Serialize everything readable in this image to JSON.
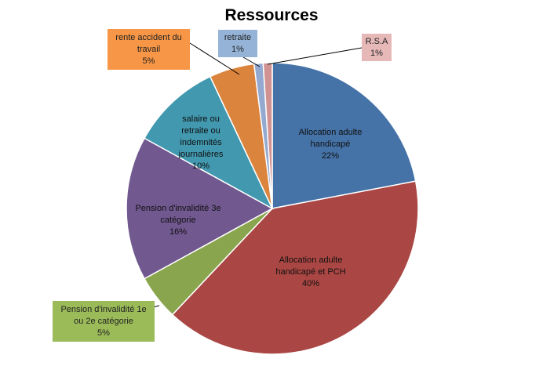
{
  "chart_data": {
    "type": "pie",
    "title": "Ressources",
    "slices": [
      {
        "label": [
          "Allocation adulte",
          "handicapé"
        ],
        "percent_label": "22%",
        "value": 22,
        "color": "#4572a7"
      },
      {
        "label": [
          "Allocation adulte",
          "handicapé et PCH"
        ],
        "percent_label": "40%",
        "value": 40,
        "color": "#aa4643"
      },
      {
        "label": [
          "Pension d'invalidité 1e",
          "ou 2e catégorie"
        ],
        "percent_label": "5%",
        "value": 5,
        "color": "#89a54e"
      },
      {
        "label": [
          "Pension d'invalidité 3e",
          "catégorie"
        ],
        "percent_label": "16%",
        "value": 16,
        "color": "#71588f"
      },
      {
        "label": [
          "salaire ou",
          "retraite ou",
          "indemnités",
          "journalières"
        ],
        "percent_label": "10%",
        "value": 10,
        "color": "#4198af"
      },
      {
        "label": [
          "rente accident du",
          "travail"
        ],
        "percent_label": "5%",
        "value": 5,
        "color": "#db843d"
      },
      {
        "label": [
          "retraite"
        ],
        "percent_label": "1%",
        "value": 1,
        "color": "#93a9cf"
      },
      {
        "label": [
          "R.S.A"
        ],
        "percent_label": "1%",
        "value": 1,
        "color": "#d19392"
      }
    ]
  }
}
